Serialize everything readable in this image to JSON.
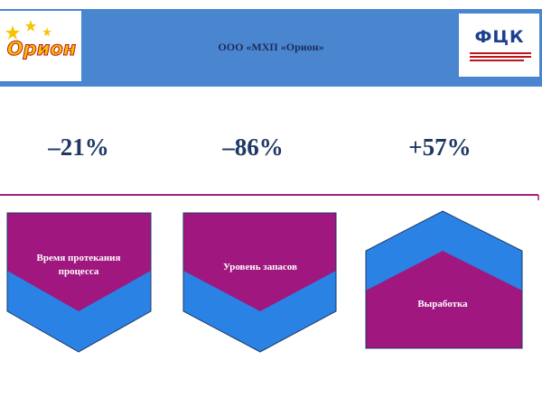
{
  "header": {
    "title": "ООО «МХП «Орион»",
    "left_logo": "Орион",
    "right_logo": "ФЦК"
  },
  "metrics": [
    {
      "value": "–21%",
      "label": "Время протекания процесса"
    },
    {
      "value": "–86%",
      "label": "Уровень запасов"
    },
    {
      "value": "+57%",
      "label": "Выработка"
    }
  ]
}
